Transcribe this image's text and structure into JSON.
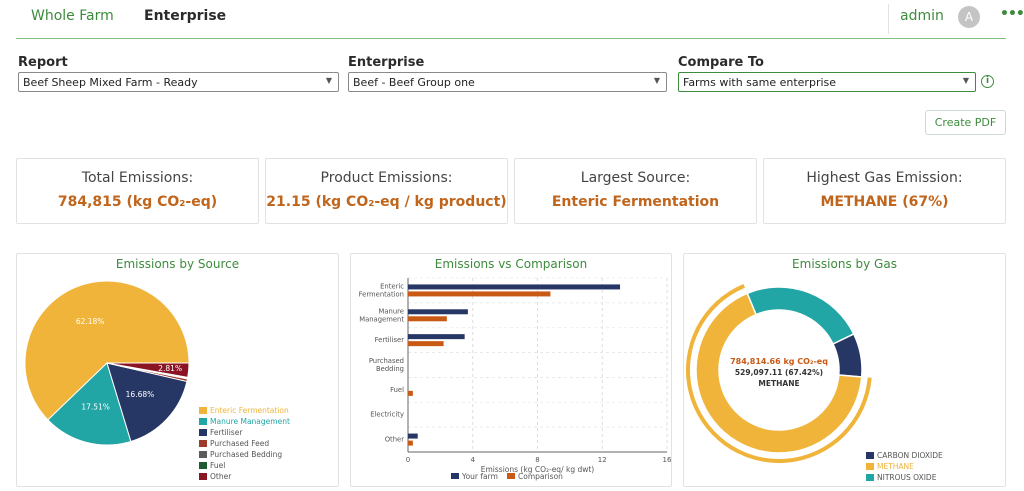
{
  "nav": {
    "tab_whole_farm": "Whole Farm",
    "tab_enterprise": "Enterprise",
    "user": "admin",
    "avatar_letter": "A",
    "more": "•••"
  },
  "filters": {
    "report": {
      "label": "Report",
      "value": "Beef Sheep Mixed Farm - Ready"
    },
    "enterprise": {
      "label": "Enterprise",
      "value": "Beef - Beef Group one"
    },
    "compare": {
      "label": "Compare To",
      "value": "Farms with same enterprise"
    },
    "info_icon": "i"
  },
  "create_pdf": "Create PDF",
  "cards": [
    {
      "title": "Total Emissions:",
      "value": "784,815 (kg CO₂-eq)"
    },
    {
      "title": "Product Emissions:",
      "value": "21.15 (kg CO₂-eq / kg product)"
    },
    {
      "title": "Largest Source:",
      "value": "Enteric Fermentation"
    },
    {
      "title": "Highest Gas Emission:",
      "value": "METHANE (67%)"
    }
  ],
  "colors": {
    "enteric": "#f0b43b",
    "manure": "#21a5a5",
    "fertiliser": "#263766",
    "purchased_feed": "#9e3a2c",
    "purchased_bedding": "#5c5c5c",
    "fuel": "#1e5a32",
    "other": "#8b1424",
    "comparison": "#c85a16",
    "accent": "#3d8b3d"
  },
  "chart_data": [
    {
      "type": "pie",
      "title": "Emissions by Source",
      "categories": [
        "Enteric Fermentation",
        "Manure Management",
        "Fertiliser",
        "Purchased Feed",
        "Purchased Bedding",
        "Fuel",
        "Other"
      ],
      "values": [
        62.18,
        17.51,
        16.68,
        0.5,
        0.2,
        0.1,
        2.81
      ],
      "labels": [
        "62.18%",
        "17.51%",
        "16.68%",
        "",
        "",
        "",
        "2.81%"
      ],
      "legend_position": "bottom-right"
    },
    {
      "type": "bar",
      "orientation": "horizontal",
      "title": "Emissions vs Comparison",
      "categories": [
        "Enteric Fermentation",
        "Manure Management",
        "Fertiliser",
        "Purchased Bedding",
        "Fuel",
        "Electricity",
        "Other"
      ],
      "category_labels": [
        [
          "Enteric",
          "Fermentation"
        ],
        [
          "Manure",
          "Management"
        ],
        [
          "Fertiliser"
        ],
        [
          "Purchased",
          "Bedding"
        ],
        [
          "Fuel"
        ],
        [
          "Electricity"
        ],
        [
          "Other"
        ]
      ],
      "series": [
        {
          "name": "Your farm",
          "values": [
            13.1,
            3.7,
            3.5,
            0.0,
            0.0,
            0.0,
            0.6
          ]
        },
        {
          "name": "Comparison",
          "values": [
            8.8,
            2.4,
            2.2,
            0.0,
            0.3,
            0.0,
            0.3
          ]
        }
      ],
      "xlabel": "Emissions (kg CO₂-eq/ kg dwt)",
      "xlim": [
        0,
        16
      ],
      "xticks": [
        0,
        4,
        8,
        12,
        16
      ],
      "grid": true,
      "legend_position": "bottom"
    },
    {
      "type": "pie",
      "subtype": "donut",
      "title": "Emissions by Gas",
      "categories": [
        "CARBON DIOXIDE",
        "METHANE",
        "NITROUS OXIDE"
      ],
      "values": [
        8.5,
        67.42,
        24.08
      ],
      "center_lines": [
        "784,814.66 kg CO₂-eq",
        "529,097.11 (67.42%)",
        "METHANE"
      ],
      "highlighted": "METHANE",
      "legend_position": "bottom-right"
    }
  ]
}
